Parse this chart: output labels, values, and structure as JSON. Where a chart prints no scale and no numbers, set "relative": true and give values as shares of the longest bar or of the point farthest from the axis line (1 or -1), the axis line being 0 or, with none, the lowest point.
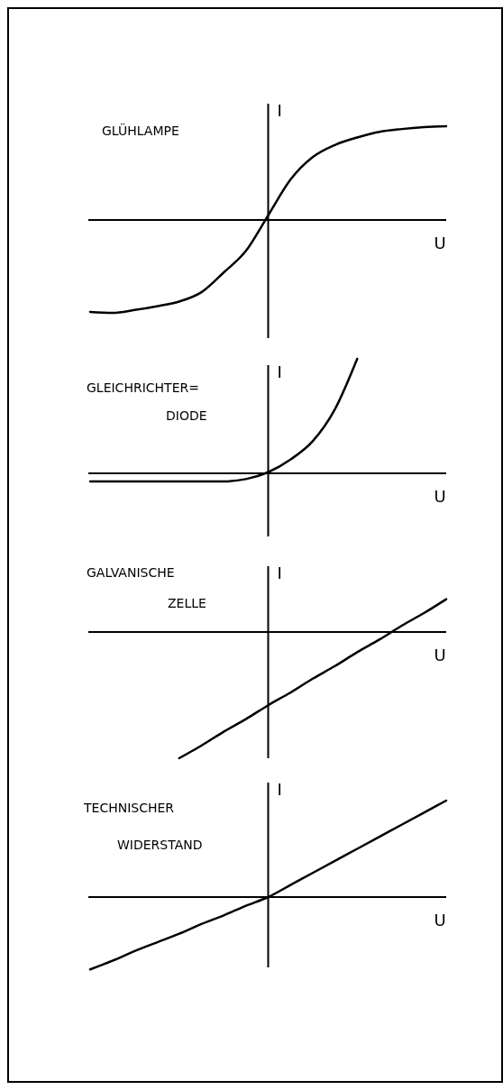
{
  "chart_data": [
    {
      "type": "line",
      "title": "GLÜHLAMPE",
      "xlabel": "U",
      "ylabel": "I",
      "relative": true,
      "categories": [
        null,
        null,
        null,
        null,
        null,
        null,
        null,
        null,
        null,
        null,
        null,
        null,
        null,
        null,
        null,
        null,
        null
      ],
      "series": [
        {
          "color": "#000000",
          "values": [
            -0.98,
            -0.99,
            -0.96,
            -0.92,
            -0.87,
            -0.77,
            -0.56,
            -0.33,
            0.05,
            0.43,
            0.67,
            0.8,
            0.88,
            0.94,
            0.97,
            0.99,
            1.0
          ]
        }
      ]
    },
    {
      "type": "line",
      "title": "GLEICHRICHTER=\nDIODE",
      "xlabel": "U",
      "ylabel": "I",
      "relative": true,
      "categories": [
        null,
        null,
        null,
        null,
        null,
        null,
        null,
        null,
        null,
        null,
        null,
        null,
        null,
        null,
        null,
        null,
        null
      ],
      "series": [
        {
          "color": "#000000",
          "values": [
            -0.07,
            -0.07,
            -0.07,
            -0.07,
            -0.07,
            -0.07,
            -0.07,
            -0.05,
            0.01,
            0.12,
            0.28,
            0.56,
            1.0,
            null,
            null,
            null,
            null
          ]
        }
      ]
    },
    {
      "type": "line",
      "title": "GALVANISCHE\nZELLE",
      "xlabel": "U",
      "ylabel": "I",
      "relative": true,
      "categories": [
        null,
        null,
        null,
        null,
        null,
        null,
        null,
        null,
        null,
        null,
        null,
        null,
        null,
        null,
        null,
        null,
        null
      ],
      "series": [
        {
          "color": "#000000",
          "values": [
            null,
            null,
            null,
            null,
            -1.0,
            -0.9,
            -0.79,
            -0.69,
            -0.58,
            -0.48,
            -0.37,
            -0.27,
            -0.16,
            -0.06,
            0.05,
            0.15,
            0.26
          ]
        }
      ]
    },
    {
      "type": "line",
      "title": "TECHNISCHER\nWIDERSTAND",
      "xlabel": "U",
      "ylabel": "I",
      "relative": true,
      "categories": [
        null,
        null,
        null,
        null,
        null,
        null,
        null,
        null,
        null,
        null,
        null,
        null,
        null,
        null,
        null,
        null,
        null
      ],
      "series": [
        {
          "color": "#000000",
          "values": [
            -0.75,
            -0.66,
            -0.56,
            -0.47,
            -0.38,
            -0.28,
            -0.19,
            -0.09,
            0,
            0.125,
            0.25,
            0.375,
            0.5,
            0.625,
            0.75,
            0.875,
            1.0
          ]
        }
      ]
    }
  ]
}
